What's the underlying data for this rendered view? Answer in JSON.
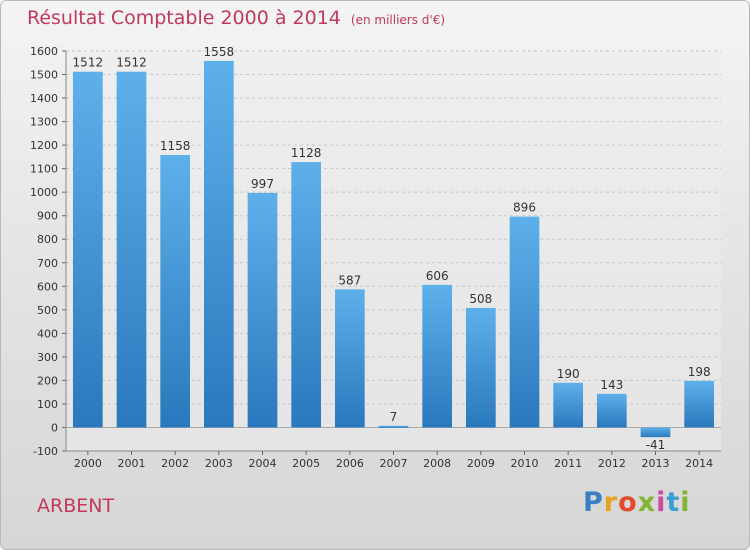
{
  "chart_data": {
    "type": "bar",
    "title": "Résultat Comptable 2000 à 2014",
    "subtitle": "(en milliers d'€)",
    "categories": [
      "2000",
      "2001",
      "2002",
      "2003",
      "2004",
      "2005",
      "2006",
      "2007",
      "2008",
      "2009",
      "2010",
      "2011",
      "2012",
      "2013",
      "2014"
    ],
    "values": [
      1512,
      1512,
      1158,
      1558,
      997,
      1128,
      587,
      7,
      606,
      508,
      896,
      190,
      143,
      -41,
      198
    ],
    "ylim": [
      -100,
      1600
    ],
    "yticks": [
      -100,
      0,
      100,
      200,
      300,
      400,
      500,
      600,
      700,
      800,
      900,
      1000,
      1100,
      1200,
      1300,
      1400,
      1500,
      1600
    ],
    "grid": true,
    "bar_color": "#3b92d6",
    "title_color": "#c0395a"
  },
  "footer": {
    "commune": "ARBENT",
    "logo_letters": [
      "P",
      "r",
      "o",
      "x",
      "i",
      "t",
      "i"
    ],
    "logo_colors": [
      "#3a7fc4",
      "#e8a21f",
      "#e64a2e",
      "#7fb530",
      "#c94ba0",
      "#3a9fd0",
      "#7fb530"
    ]
  }
}
